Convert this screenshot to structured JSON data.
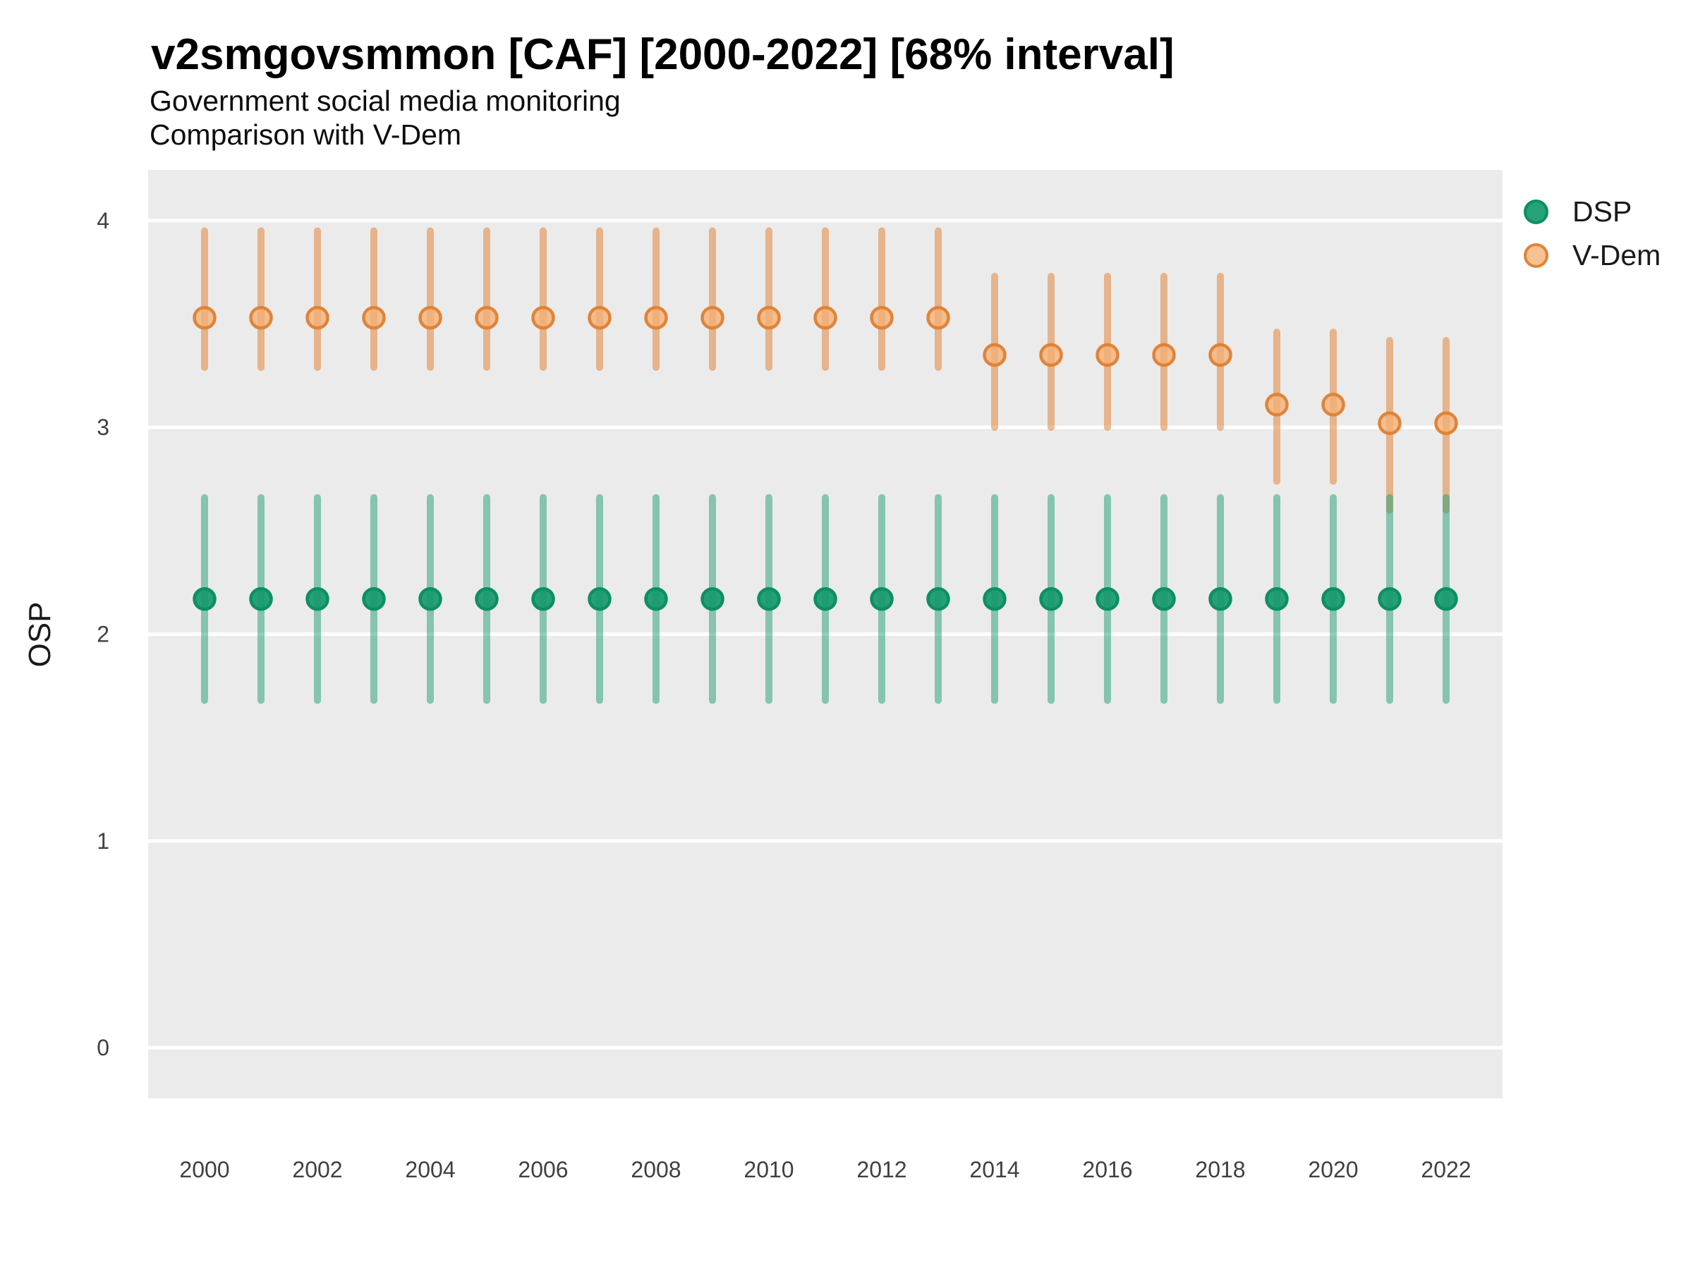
{
  "chart_data": {
    "type": "pointrange",
    "title": "v2smgovsmmon [CAF] [2000-2022] [68% interval]",
    "subtitle_line1": "Government social media monitoring",
    "subtitle_line2": "Comparison with V-Dem",
    "ylabel": "OSP",
    "xlabel": "",
    "interval_label": "68% interval",
    "xlim": [
      1999,
      2023
    ],
    "ylim": [
      -0.245,
      4.245
    ],
    "grid": "major horizontal only",
    "legend_position": "right-top",
    "years": [
      2000,
      2001,
      2002,
      2003,
      2004,
      2005,
      2006,
      2007,
      2008,
      2009,
      2010,
      2011,
      2012,
      2013,
      2014,
      2015,
      2016,
      2017,
      2018,
      2019,
      2020,
      2021,
      2022
    ],
    "x_ticks": [
      2000,
      2002,
      2004,
      2006,
      2008,
      2010,
      2012,
      2014,
      2016,
      2018,
      2020,
      2022
    ],
    "x_tick_labels": [
      "2000",
      "2002",
      "2004",
      "2006",
      "2008",
      "2010",
      "2012",
      "2014",
      "2016",
      "2018",
      "2020",
      "2022"
    ],
    "y_ticks": [
      0,
      1,
      2,
      3,
      4
    ],
    "y_tick_labels": [
      "0",
      "1",
      "2",
      "3",
      "4"
    ],
    "series": [
      {
        "name": "DSP",
        "values": [
          2.17,
          2.17,
          2.17,
          2.17,
          2.17,
          2.17,
          2.17,
          2.17,
          2.17,
          2.17,
          2.17,
          2.17,
          2.17,
          2.17,
          2.17,
          2.17,
          2.17,
          2.17,
          2.17,
          2.17,
          2.17,
          2.17,
          2.17
        ],
        "low": [
          1.68,
          1.68,
          1.68,
          1.68,
          1.68,
          1.68,
          1.68,
          1.68,
          1.68,
          1.68,
          1.68,
          1.68,
          1.68,
          1.68,
          1.68,
          1.68,
          1.68,
          1.68,
          1.68,
          1.68,
          1.68,
          1.68,
          1.68
        ],
        "high": [
          2.66,
          2.66,
          2.66,
          2.66,
          2.66,
          2.66,
          2.66,
          2.66,
          2.66,
          2.66,
          2.66,
          2.66,
          2.66,
          2.66,
          2.66,
          2.66,
          2.66,
          2.66,
          2.66,
          2.66,
          2.66,
          2.66,
          2.66
        ],
        "line_color": "rgba(31,157,116,0.5)",
        "point_fill": "rgba(22,153,108,0.92)",
        "point_stroke": "rgba(13,143,99,1)"
      },
      {
        "name": "V-Dem",
        "values": [
          3.53,
          3.53,
          3.53,
          3.53,
          3.53,
          3.53,
          3.53,
          3.53,
          3.53,
          3.53,
          3.53,
          3.53,
          3.53,
          3.53,
          3.35,
          3.35,
          3.35,
          3.35,
          3.35,
          3.11,
          3.11,
          3.02,
          3.02
        ],
        "low": [
          3.29,
          3.29,
          3.29,
          3.29,
          3.29,
          3.29,
          3.29,
          3.29,
          3.29,
          3.29,
          3.29,
          3.29,
          3.29,
          3.29,
          3.0,
          3.0,
          3.0,
          3.0,
          3.0,
          2.74,
          2.74,
          2.6,
          2.6
        ],
        "high": [
          3.95,
          3.95,
          3.95,
          3.95,
          3.95,
          3.95,
          3.95,
          3.95,
          3.95,
          3.95,
          3.95,
          3.95,
          3.95,
          3.95,
          3.73,
          3.73,
          3.73,
          3.73,
          3.73,
          3.46,
          3.46,
          3.42,
          3.42
        ],
        "line_color": "rgba(226,133,58,0.55)",
        "point_fill": "rgba(243,175,117,0.78)",
        "point_stroke": "rgba(223,128,50,0.95)"
      }
    ],
    "style": {
      "panel_bg": "#EBEBEB",
      "grid_color": "#FFFFFF",
      "axis_text_color": "#404040",
      "title_color": "#000000"
    }
  },
  "legend": {
    "items": [
      {
        "label": "DSP",
        "fill": "rgba(22,153,108,0.92)",
        "stroke": "rgba(13,143,99,1)"
      },
      {
        "label": "V-Dem",
        "fill": "rgba(243,175,117,0.78)",
        "stroke": "rgba(223,128,50,0.95)"
      }
    ]
  }
}
